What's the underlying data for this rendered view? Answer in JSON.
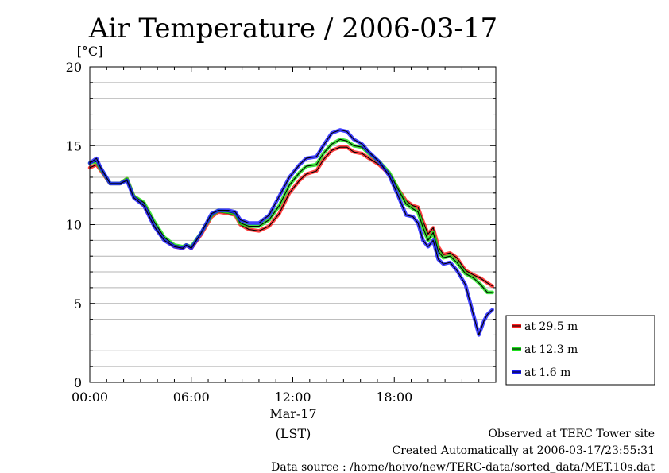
{
  "chart_data": {
    "type": "line",
    "title": "Air Temperature / 2006-03-17",
    "yunit": "[°C]",
    "ylim": [
      0,
      20
    ],
    "xlim": [
      0,
      24
    ],
    "grid": true,
    "legend_position": "right-bottom",
    "y_ticks": [
      0,
      5,
      10,
      15,
      20
    ],
    "x_ticks": [
      {
        "hour": 0,
        "label": "00:00"
      },
      {
        "hour": 6,
        "label": "06:00"
      },
      {
        "hour": 12,
        "label": "12:00"
      },
      {
        "hour": 18,
        "label": "18:00"
      }
    ],
    "x_date_label": "Mar-17",
    "x_zone_label": "(LST)",
    "x_unit": "hour",
    "series": [
      {
        "name": "at 29.5 m",
        "color": "#ff2020",
        "points": [
          [
            0,
            13.6
          ],
          [
            0.4,
            13.8
          ],
          [
            0.6,
            13.5
          ],
          [
            1.2,
            12.6
          ],
          [
            1.8,
            12.6
          ],
          [
            2.2,
            12.9
          ],
          [
            2.6,
            11.8
          ],
          [
            3.2,
            11.3
          ],
          [
            3.8,
            10.0
          ],
          [
            4.4,
            9.1
          ],
          [
            5.0,
            8.6
          ],
          [
            5.5,
            8.5
          ],
          [
            5.7,
            8.7
          ],
          [
            6.0,
            8.5
          ],
          [
            6.6,
            9.4
          ],
          [
            7.2,
            10.5
          ],
          [
            7.6,
            10.8
          ],
          [
            8.2,
            10.7
          ],
          [
            8.6,
            10.6
          ],
          [
            8.9,
            10.0
          ],
          [
            9.4,
            9.7
          ],
          [
            10.0,
            9.6
          ],
          [
            10.6,
            9.9
          ],
          [
            11.2,
            10.7
          ],
          [
            11.8,
            12.0
          ],
          [
            12.4,
            12.8
          ],
          [
            12.8,
            13.2
          ],
          [
            13.4,
            13.4
          ],
          [
            13.8,
            14.1
          ],
          [
            14.3,
            14.7
          ],
          [
            14.8,
            14.9
          ],
          [
            15.2,
            14.9
          ],
          [
            15.6,
            14.6
          ],
          [
            16.1,
            14.5
          ],
          [
            16.5,
            14.2
          ],
          [
            17.1,
            13.8
          ],
          [
            17.7,
            13.2
          ],
          [
            18.2,
            12.3
          ],
          [
            18.7,
            11.5
          ],
          [
            19.1,
            11.2
          ],
          [
            19.4,
            11.1
          ],
          [
            19.7,
            10.2
          ],
          [
            20.0,
            9.4
          ],
          [
            20.3,
            9.8
          ],
          [
            20.6,
            8.6
          ],
          [
            20.9,
            8.1
          ],
          [
            21.3,
            8.2
          ],
          [
            21.7,
            7.9
          ],
          [
            22.2,
            7.1
          ],
          [
            22.7,
            6.8
          ],
          [
            23.1,
            6.6
          ],
          [
            23.5,
            6.3
          ],
          [
            23.8,
            6.1
          ]
        ]
      },
      {
        "name": "at 12.3 m",
        "color": "#20e020",
        "points": [
          [
            0,
            13.9
          ],
          [
            0.4,
            14.0
          ],
          [
            0.6,
            13.6
          ],
          [
            1.2,
            12.6
          ],
          [
            1.8,
            12.6
          ],
          [
            2.2,
            12.9
          ],
          [
            2.6,
            11.8
          ],
          [
            3.2,
            11.4
          ],
          [
            3.8,
            10.2
          ],
          [
            4.4,
            9.2
          ],
          [
            5.0,
            8.7
          ],
          [
            5.5,
            8.6
          ],
          [
            5.7,
            8.7
          ],
          [
            6.0,
            8.6
          ],
          [
            6.6,
            9.5
          ],
          [
            7.2,
            10.6
          ],
          [
            7.6,
            10.9
          ],
          [
            8.2,
            10.8
          ],
          [
            8.6,
            10.7
          ],
          [
            8.9,
            10.1
          ],
          [
            9.4,
            9.9
          ],
          [
            10.0,
            9.9
          ],
          [
            10.6,
            10.3
          ],
          [
            11.2,
            11.2
          ],
          [
            11.8,
            12.5
          ],
          [
            12.4,
            13.3
          ],
          [
            12.8,
            13.7
          ],
          [
            13.4,
            13.8
          ],
          [
            13.8,
            14.5
          ],
          [
            14.3,
            15.1
          ],
          [
            14.8,
            15.4
          ],
          [
            15.2,
            15.3
          ],
          [
            15.6,
            15.0
          ],
          [
            16.1,
            14.9
          ],
          [
            16.5,
            14.5
          ],
          [
            17.1,
            14.0
          ],
          [
            17.7,
            13.3
          ],
          [
            18.2,
            12.3
          ],
          [
            18.7,
            11.3
          ],
          [
            19.1,
            11.0
          ],
          [
            19.4,
            10.8
          ],
          [
            19.7,
            9.8
          ],
          [
            20.0,
            9.0
          ],
          [
            20.3,
            9.5
          ],
          [
            20.6,
            8.3
          ],
          [
            20.9,
            7.9
          ],
          [
            21.3,
            8.0
          ],
          [
            21.7,
            7.6
          ],
          [
            22.2,
            6.9
          ],
          [
            22.7,
            6.6
          ],
          [
            23.1,
            6.2
          ],
          [
            23.5,
            5.7
          ],
          [
            23.8,
            5.7
          ]
        ]
      },
      {
        "name": "at 1.6 m",
        "color": "#2020ff",
        "points": [
          [
            0,
            13.9
          ],
          [
            0.4,
            14.2
          ],
          [
            0.6,
            13.7
          ],
          [
            1.2,
            12.6
          ],
          [
            1.8,
            12.6
          ],
          [
            2.2,
            12.8
          ],
          [
            2.6,
            11.7
          ],
          [
            3.2,
            11.2
          ],
          [
            3.8,
            9.9
          ],
          [
            4.4,
            9.0
          ],
          [
            5.0,
            8.6
          ],
          [
            5.5,
            8.5
          ],
          [
            5.7,
            8.7
          ],
          [
            6.0,
            8.5
          ],
          [
            6.6,
            9.5
          ],
          [
            7.2,
            10.7
          ],
          [
            7.6,
            10.9
          ],
          [
            8.2,
            10.9
          ],
          [
            8.6,
            10.8
          ],
          [
            8.9,
            10.3
          ],
          [
            9.4,
            10.1
          ],
          [
            10.0,
            10.1
          ],
          [
            10.6,
            10.6
          ],
          [
            11.2,
            11.8
          ],
          [
            11.8,
            13.0
          ],
          [
            12.4,
            13.8
          ],
          [
            12.8,
            14.2
          ],
          [
            13.4,
            14.3
          ],
          [
            13.8,
            15.0
          ],
          [
            14.3,
            15.8
          ],
          [
            14.8,
            16.0
          ],
          [
            15.2,
            15.9
          ],
          [
            15.6,
            15.4
          ],
          [
            16.1,
            15.1
          ],
          [
            16.5,
            14.6
          ],
          [
            17.1,
            14.0
          ],
          [
            17.7,
            13.1
          ],
          [
            18.2,
            11.9
          ],
          [
            18.7,
            10.6
          ],
          [
            19.1,
            10.5
          ],
          [
            19.4,
            10.1
          ],
          [
            19.7,
            9.0
          ],
          [
            20.0,
            8.6
          ],
          [
            20.3,
            9.0
          ],
          [
            20.6,
            7.8
          ],
          [
            20.9,
            7.5
          ],
          [
            21.3,
            7.6
          ],
          [
            21.7,
            7.1
          ],
          [
            22.2,
            6.2
          ],
          [
            22.7,
            4.2
          ],
          [
            23.0,
            3.0
          ],
          [
            23.3,
            3.9
          ],
          [
            23.5,
            4.3
          ],
          [
            23.8,
            4.6
          ]
        ]
      }
    ]
  },
  "notes": {
    "line1": "Observed at TERC Tower site",
    "line2": "Created Automatically at 2006-03-17/23:55:31",
    "line3": "Data source : /home/hoivo/new/TERC-data/sorted_data/MET.10s.dat"
  }
}
